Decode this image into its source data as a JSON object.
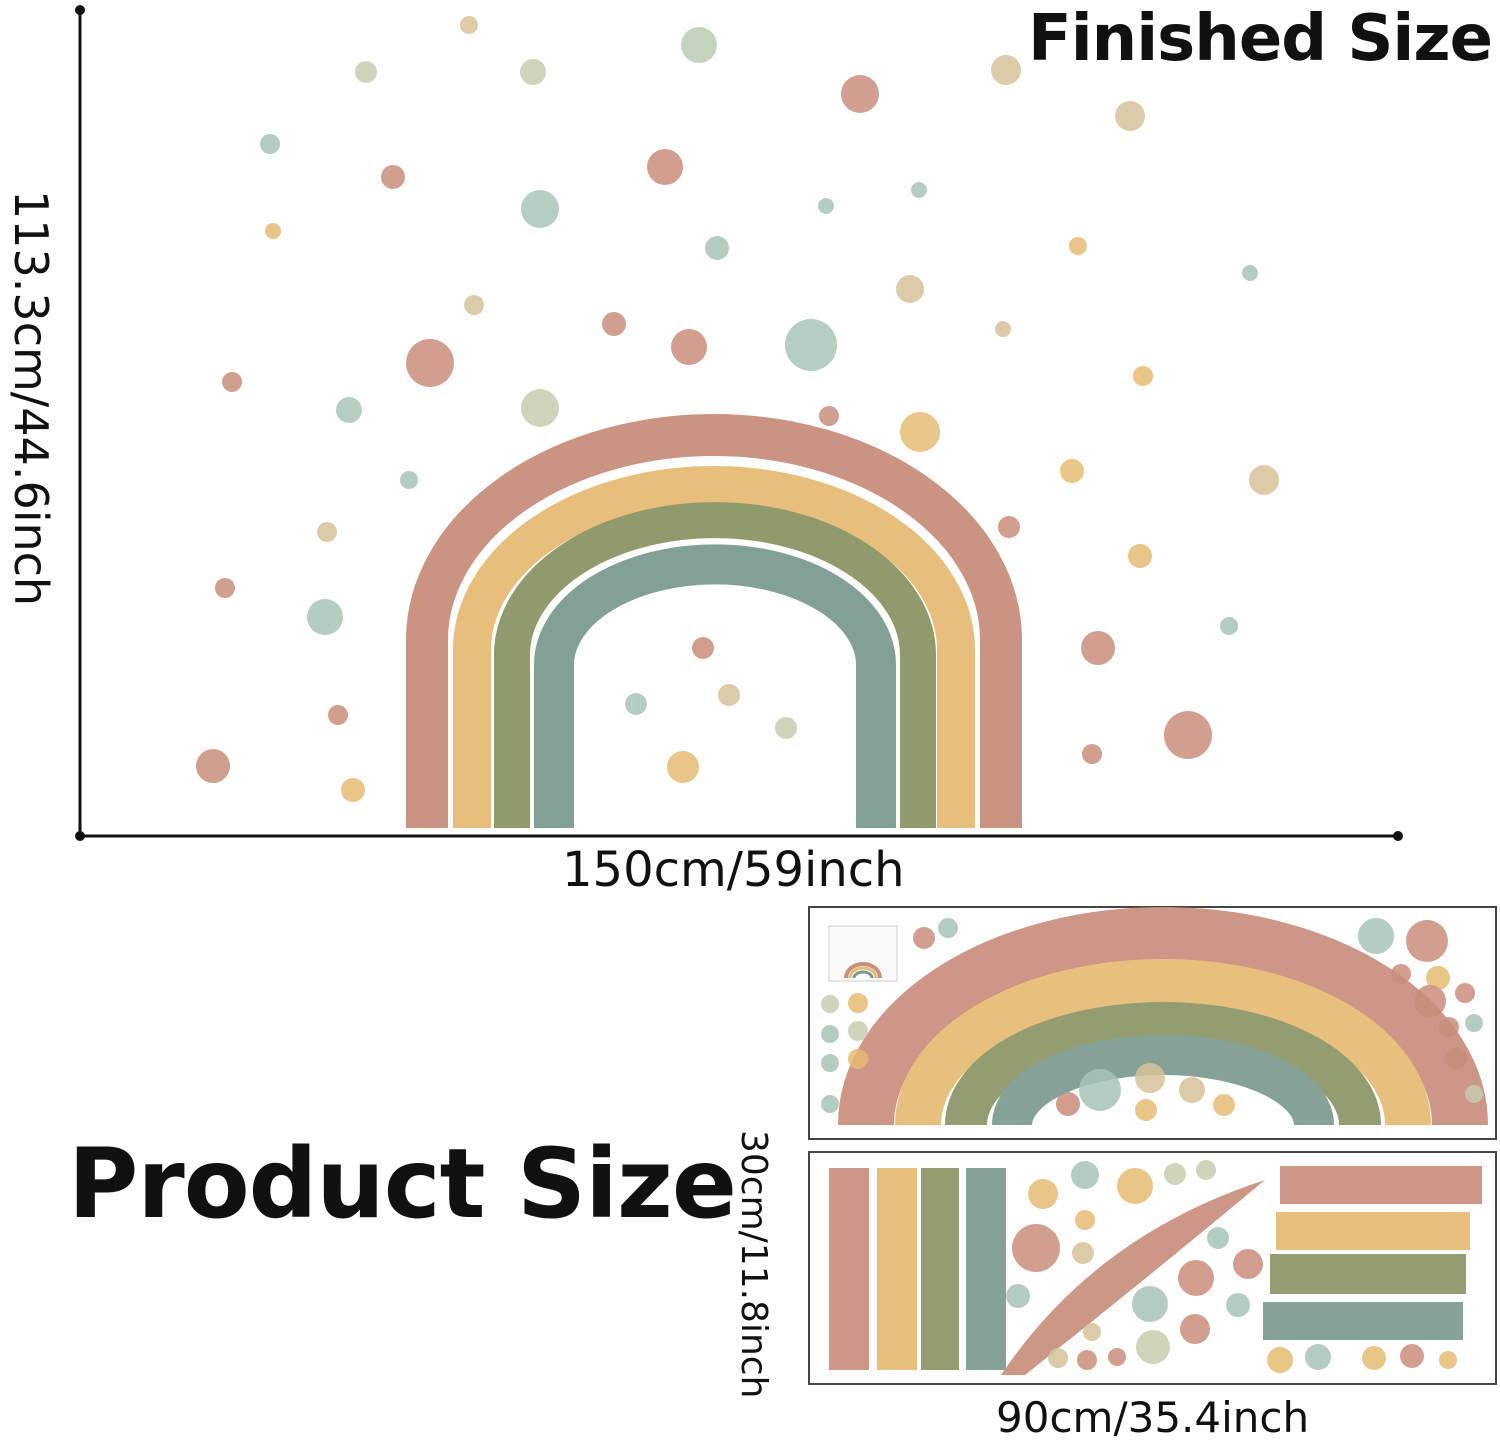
{
  "finished": {
    "title": "Finished Size",
    "width_label": "150cm/59inch",
    "height_label": "113.3cm/44.6inch"
  },
  "product": {
    "title": "Product Size",
    "width_label": "90cm/35.4inch",
    "height_label": "30cm/11.8inch"
  },
  "palette": {
    "terracotta": "#c98e7c",
    "mustard": "#e6bb74",
    "olive": "#8c9566",
    "sage": "#7c9b90",
    "mint": "#a9c5b6",
    "sand": "#d7c39a",
    "line": "#111111"
  }
}
